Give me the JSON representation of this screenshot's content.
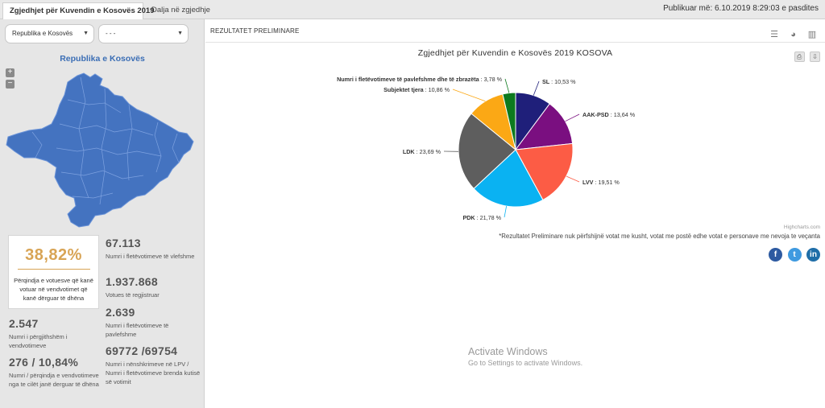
{
  "tabs": [
    {
      "label": "Zgjedhjet për Kuvendin e Kosovës 2019",
      "active": true
    },
    {
      "label": "Dalja në zgjedhje",
      "active": false
    }
  ],
  "published": "Publikuar më: 6.10.2019 8:29:03 e pasdites",
  "left": {
    "select1": {
      "value": "Republika e Kosovës"
    },
    "select2": {
      "value": "- - -"
    },
    "map_title": "Republika e Kosovës",
    "zoom_in": "+",
    "zoom_out": "−",
    "map_color": "#4473c0",
    "turnout": {
      "value": "38,82%",
      "label": "Përqindja e votuesve që kanë votuar në vendvotimet që kanë dërguar të dhëna"
    },
    "stats": {
      "valid": {
        "num": "67.113",
        "label": "Numri i fletëvotimeve të vlefshme"
      },
      "registered": {
        "num": "1.937.868",
        "label": "Votues të regjistruar"
      },
      "invalid": {
        "num": "2.639",
        "label": "Numri i fletëvotimeve të pavlefshme"
      },
      "stations": {
        "num": "2.547",
        "label": "Numri i përgjithshëm i vendvotimeve"
      },
      "stations_reported": {
        "num": "276 / 10,84%",
        "label": "Numri / përqindja e vendvotimeve nga te cilët janë derguar të dhëna"
      },
      "signatures": {
        "num": "69772 /69754",
        "label": "Numri i nënshkrimeve në LPV / Numri i fletëvotimeve brenda kutisë së votimit"
      }
    }
  },
  "main": {
    "results_title": "REZULTATET PRELIMINARE",
    "chart_title": "Zgjedhjet për Kuvendin e Kosovës 2019 KOSOVA",
    "credits": "Highcharts.com",
    "note": "*Rezultatet Preliminare nuk përfshijnë votat me kusht, votat me postë edhe votat e personave me nevoja te veçanta",
    "social": {
      "fb": "f",
      "tw": "t",
      "li": "in"
    },
    "view_icons": [
      "list-icon",
      "pie-icon",
      "bar-chart-icon"
    ],
    "export_icons": [
      "print-icon",
      "download-icon"
    ]
  },
  "chart_data": {
    "type": "pie",
    "title": "Zgjedhjet për Kuvendin e Kosovës 2019 KOSOVA",
    "series": [
      {
        "name": "SL",
        "value": 10.53,
        "label": "10,53 %",
        "color": "#1f1f7a"
      },
      {
        "name": "AAK-PSD",
        "value": 13.64,
        "label": "13,64 %",
        "color": "#7a0f80"
      },
      {
        "name": "LVV",
        "value": 19.51,
        "label": "19,51 %",
        "color": "#fc5c45"
      },
      {
        "name": "PDK",
        "value": 21.78,
        "label": "21,78 %",
        "color": "#0ab2f2"
      },
      {
        "name": "LDK",
        "value": 23.69,
        "label": "23,69 %",
        "color": "#5e5e5e"
      },
      {
        "name": "Subjektet tjera",
        "value": 10.86,
        "label": "10,86 %",
        "color": "#fba815"
      },
      {
        "name": "Numri i fletëvotimeve të pavlefshme dhe të zbrazëta",
        "value": 3.78,
        "label": "3,78 %",
        "color": "#0d7a1e"
      }
    ]
  },
  "overlay": {
    "line1": "Activate Windows",
    "line2": "Go to Settings to activate Windows."
  }
}
